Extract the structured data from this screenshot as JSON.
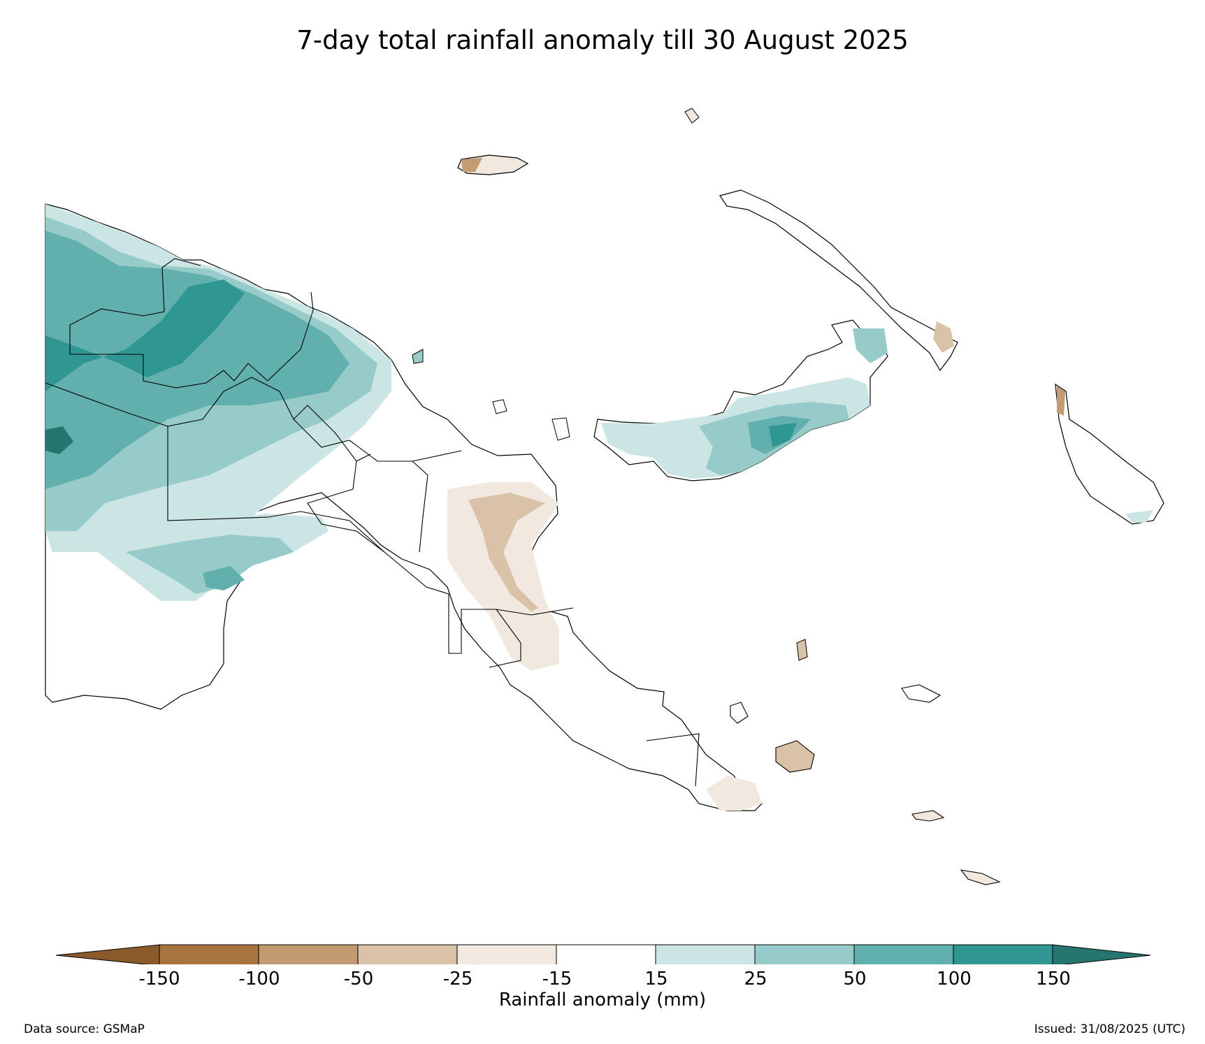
{
  "title": "7-day total rainfall anomaly till 30 August 2025",
  "colorbar": {
    "label": "Rainfall anomaly (mm)",
    "ticks": [
      "-150",
      "-100",
      "-50",
      "-25",
      "-15",
      "15",
      "25",
      "50",
      "100",
      "150"
    ],
    "colors": {
      "below_min": "#8a5a2b",
      "minus150_minus100": "#a8733e",
      "minus100_minus50": "#c29b73",
      "minus50_minus25": "#dac2a8",
      "minus25_minus15": "#f1e8df",
      "minus15_15": "#ffffff",
      "p15_25": "#cbe5e4",
      "p25_50": "#96cbc9",
      "p50_100": "#62b0ad",
      "p100_150": "#2f9692",
      "above_max": "#267570"
    }
  },
  "footer": {
    "source": "Data source: GSMaP",
    "issued": "Issued: 31/08/2025 (UTC)"
  }
}
